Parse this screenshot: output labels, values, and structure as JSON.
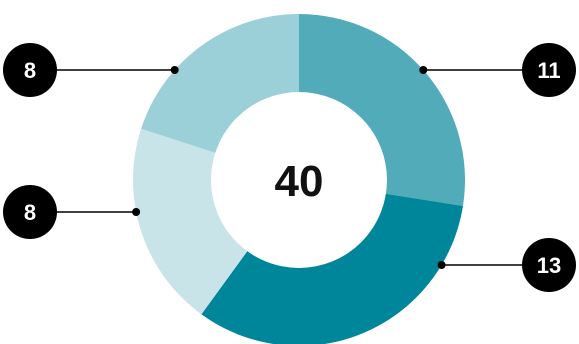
{
  "chart_data": {
    "type": "pie",
    "total": "40",
    "segments": [
      {
        "value": 11,
        "label": "11",
        "color": "#52abb9"
      },
      {
        "value": 13,
        "label": "13",
        "color": "#00869a"
      },
      {
        "value": 8,
        "label": "8",
        "color": "#c9e4e9"
      },
      {
        "value": 8,
        "label": "8",
        "color": "#9cd0d8"
      }
    ]
  }
}
